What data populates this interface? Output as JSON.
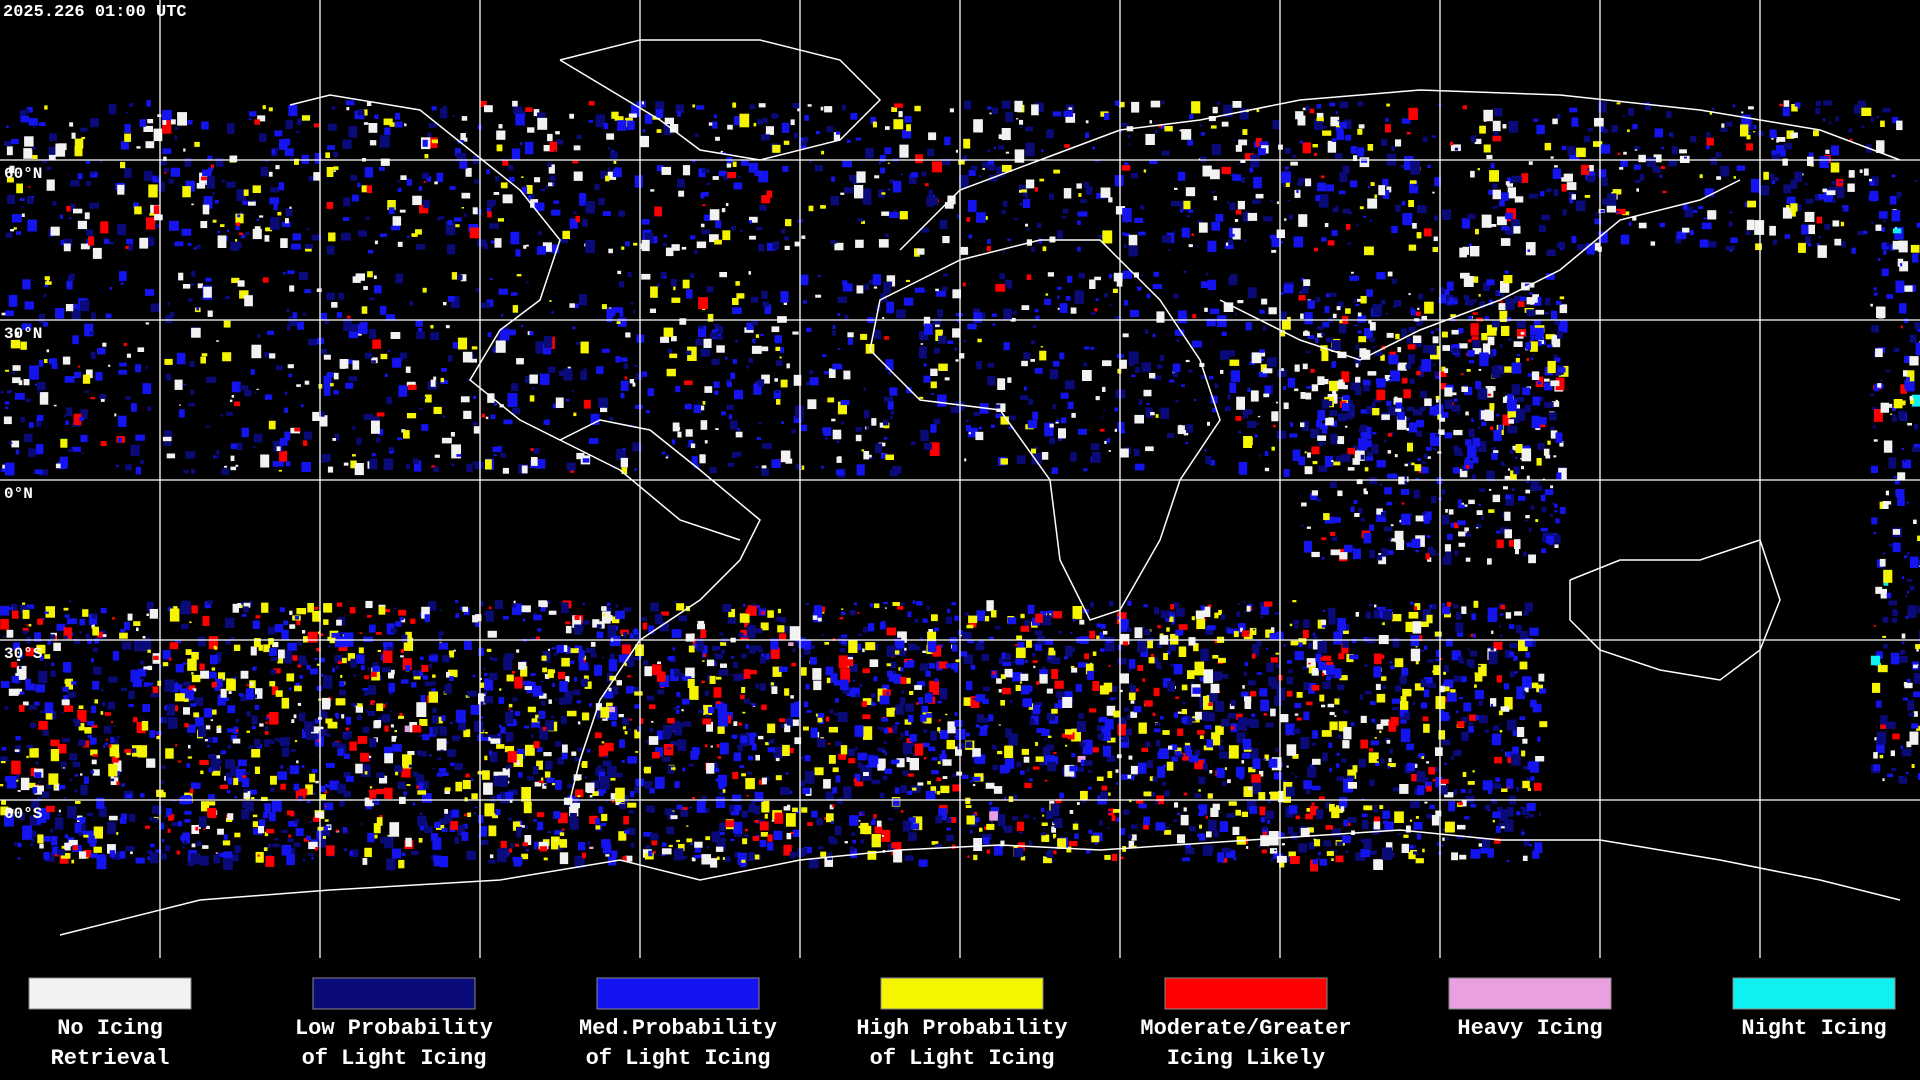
{
  "timestamp": "2025.226 01:00 UTC",
  "latitude_labels": [
    "60°N",
    "30°N",
    "0°N",
    "30°S",
    "60°S"
  ],
  "legend": [
    {
      "label": [
        "No Icing",
        "Retrieval"
      ],
      "color": "#f2f2f2"
    },
    {
      "label": [
        "Low Probability",
        "of Light Icing"
      ],
      "color": "#0a0a78"
    },
    {
      "label": [
        "Med.Probability",
        "of Light Icing"
      ],
      "color": "#1414f0"
    },
    {
      "label": [
        "High Probability",
        "of Light Icing"
      ],
      "color": "#f5f500"
    },
    {
      "label": [
        "Moderate/Greater",
        "Icing Likely"
      ],
      "color": "#ff0000"
    },
    {
      "label": [
        "Heavy Icing"
      ],
      "color": "#e8a0e0"
    },
    {
      "label": [
        "Night Icing"
      ],
      "color": "#10f0f0"
    }
  ]
}
